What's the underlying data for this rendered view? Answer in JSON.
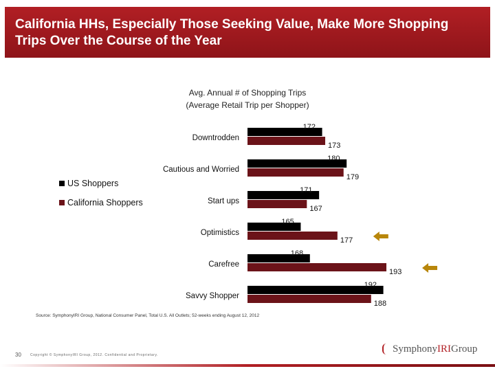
{
  "header": {
    "title": "California HHs, Especially Those Seeking Value, Make More Shopping Trips Over the Course of the Year"
  },
  "chart_data": {
    "type": "bar",
    "orientation": "horizontal",
    "title_line1": "Avg. Annual # of Shopping Trips",
    "title_line2": "(Average Retail Trip per Shopper)",
    "categories": [
      "Downtrodden",
      "Cautious and Worried",
      "Start ups",
      "Optimistics",
      "Carefree",
      "Savvy Shopper"
    ],
    "series": [
      {
        "name": "US Shoppers",
        "color": "#000000",
        "values": [
          172,
          180,
          171,
          165,
          168,
          192
        ]
      },
      {
        "name": "California Shoppers",
        "color": "#6b1319",
        "values": [
          173,
          179,
          167,
          177,
          193,
          188
        ]
      }
    ],
    "highlighted_categories": [
      "Optimistics",
      "Carefree"
    ],
    "arrow_color": "#b8860b",
    "legend_position": "left",
    "grid": false
  },
  "source": "Source: SymphonyIRI Group, National Consumer Panel, Total U.S. All Outlets; 52-weeks ending August 12, 2012",
  "footer": {
    "page_number": "30",
    "copyright": "Copyright © SymphonyIRI Group, 2012. Confidential and Proprietary.",
    "logo_part1": "Symphony",
    "logo_part2": "IRI",
    "logo_part3": "Group"
  }
}
